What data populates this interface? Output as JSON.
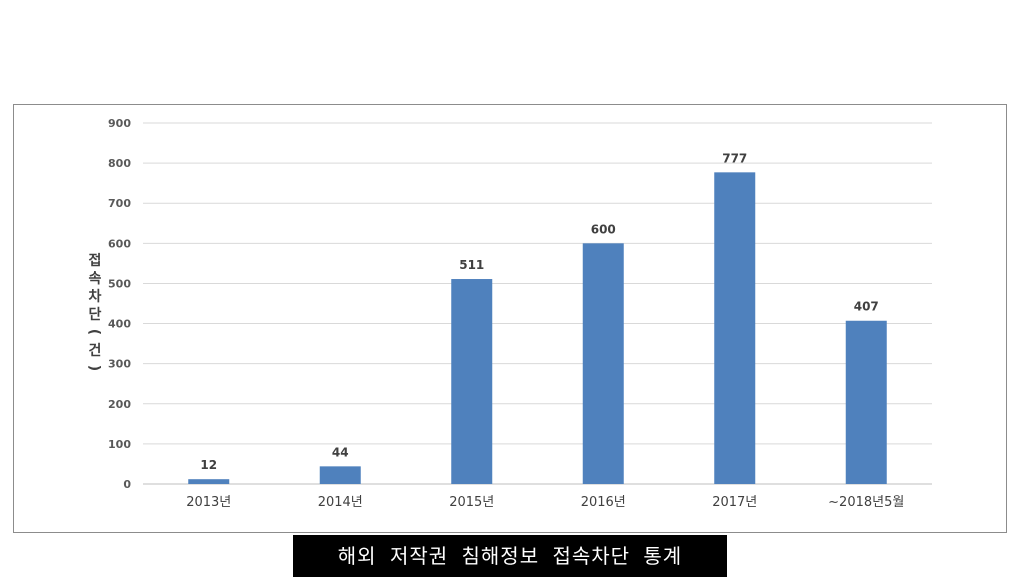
{
  "caption": "해외 저작권 침해정보 접속차단 통계",
  "chart_data": {
    "type": "bar",
    "ylabel": "접속차단(건)",
    "categories": [
      "2013년",
      "2014년",
      "2015년",
      "2016년",
      "2017년",
      "~2018년5월"
    ],
    "values": [
      12,
      44,
      511,
      600,
      777,
      407
    ],
    "ylim": [
      0,
      900
    ],
    "yticks": [
      0,
      100,
      200,
      300,
      400,
      500,
      600,
      700,
      800,
      900
    ],
    "grid": true,
    "bar_color": "#4f81bd",
    "data_labels": true
  }
}
